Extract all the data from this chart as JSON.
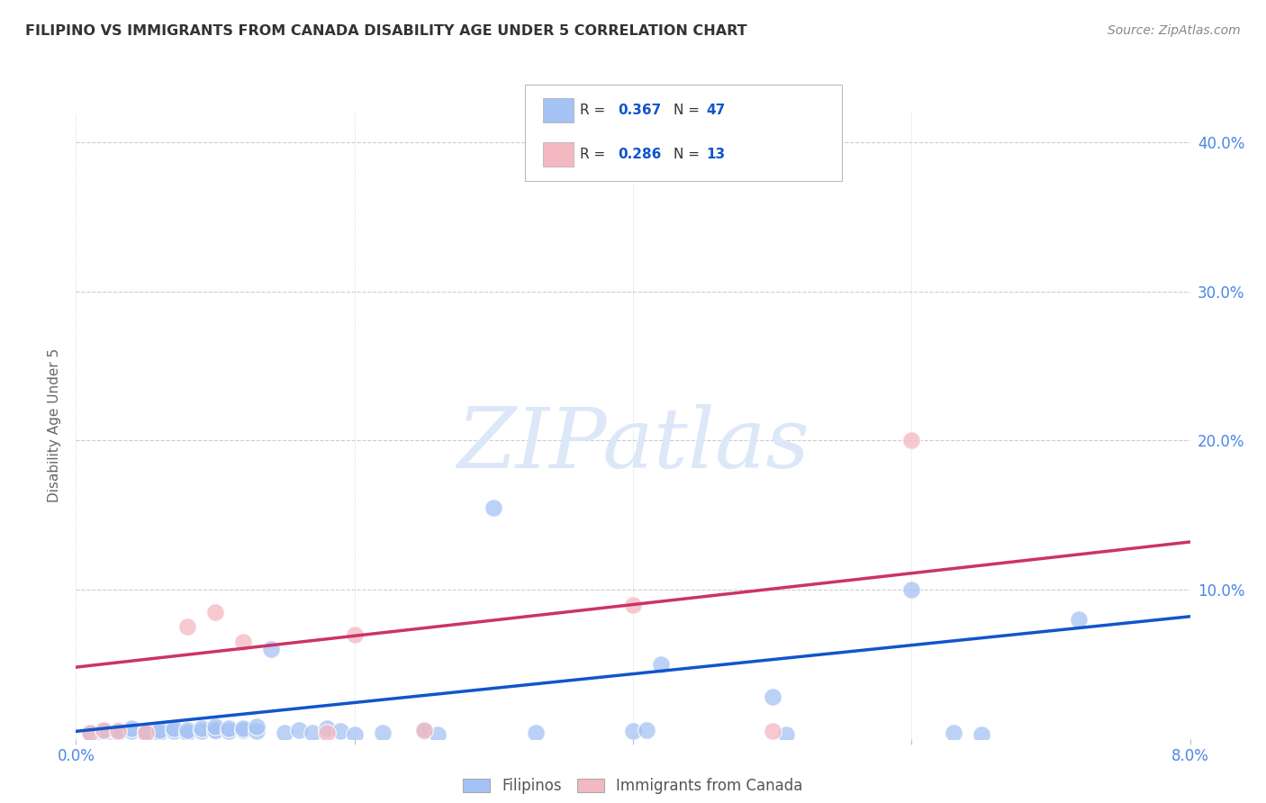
{
  "title": "FILIPINO VS IMMIGRANTS FROM CANADA DISABILITY AGE UNDER 5 CORRELATION CHART",
  "source": "Source: ZipAtlas.com",
  "ylabel": "Disability Age Under 5",
  "xmin": 0.0,
  "xmax": 0.08,
  "ymin": 0.0,
  "ymax": 0.42,
  "yticks": [
    0.0,
    0.1,
    0.2,
    0.3,
    0.4
  ],
  "ytick_labels": [
    "",
    "10.0%",
    "20.0%",
    "30.0%",
    "40.0%"
  ],
  "xticks": [
    0.0,
    0.02,
    0.04,
    0.06,
    0.08
  ],
  "xtick_labels": [
    "0.0%",
    "",
    "",
    "",
    "8.0%"
  ],
  "blue_R": "0.367",
  "blue_N": "47",
  "pink_R": "0.286",
  "pink_N": "13",
  "blue_color": "#a4c2f4",
  "pink_color": "#f4b8c1",
  "blue_line_color": "#1155cc",
  "pink_line_color": "#cc3366",
  "watermark_text": "ZIPatlas",
  "watermark_color": "#dce8f8",
  "background_color": "#ffffff",
  "grid_color": "#c0c0c0",
  "title_color": "#333333",
  "axis_label_color": "#4a86e8",
  "source_color": "#888888",
  "legend_R_color": "#1155cc",
  "legend_color_blue": "#a4c2f4",
  "legend_color_pink": "#f4b8c1",
  "blue_scatter_x": [
    0.001,
    0.002,
    0.002,
    0.003,
    0.003,
    0.004,
    0.004,
    0.005,
    0.005,
    0.006,
    0.006,
    0.007,
    0.007,
    0.008,
    0.008,
    0.009,
    0.009,
    0.01,
    0.01,
    0.01,
    0.011,
    0.011,
    0.012,
    0.012,
    0.013,
    0.013,
    0.014,
    0.015,
    0.016,
    0.017,
    0.018,
    0.019,
    0.02,
    0.022,
    0.025,
    0.026,
    0.03,
    0.033,
    0.04,
    0.041,
    0.042,
    0.05,
    0.051,
    0.06,
    0.063,
    0.065,
    0.072
  ],
  "blue_scatter_y": [
    0.004,
    0.003,
    0.005,
    0.004,
    0.006,
    0.005,
    0.007,
    0.003,
    0.005,
    0.004,
    0.006,
    0.005,
    0.007,
    0.004,
    0.006,
    0.005,
    0.007,
    0.005,
    0.006,
    0.008,
    0.005,
    0.007,
    0.006,
    0.007,
    0.005,
    0.008,
    0.06,
    0.004,
    0.006,
    0.004,
    0.007,
    0.005,
    0.003,
    0.004,
    0.005,
    0.003,
    0.155,
    0.004,
    0.005,
    0.006,
    0.05,
    0.028,
    0.003,
    0.1,
    0.004,
    0.003,
    0.08
  ],
  "pink_scatter_x": [
    0.001,
    0.002,
    0.003,
    0.005,
    0.008,
    0.01,
    0.012,
    0.018,
    0.02,
    0.025,
    0.04,
    0.05,
    0.06
  ],
  "pink_scatter_y": [
    0.004,
    0.006,
    0.005,
    0.004,
    0.075,
    0.085,
    0.065,
    0.004,
    0.07,
    0.006,
    0.09,
    0.005,
    0.2
  ],
  "blue_trend_x": [
    0.0,
    0.08
  ],
  "blue_trend_y": [
    0.005,
    0.082
  ],
  "pink_trend_x": [
    0.0,
    0.08
  ],
  "pink_trend_y": [
    0.048,
    0.132
  ]
}
